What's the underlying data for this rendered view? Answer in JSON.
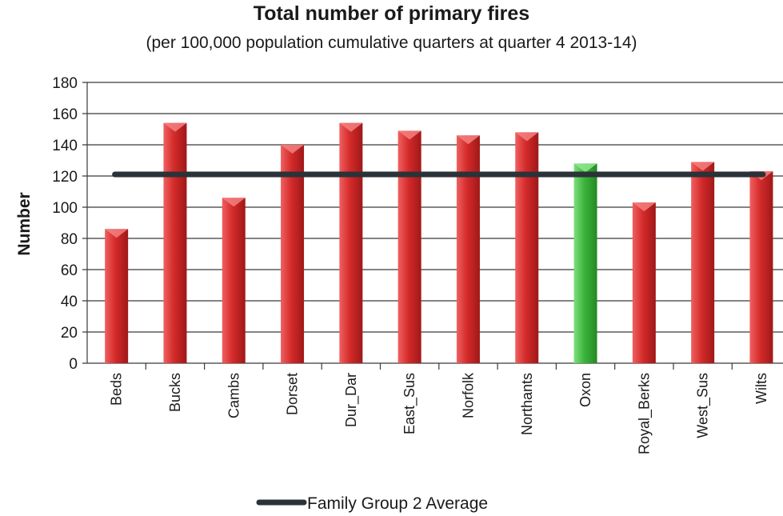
{
  "chart_data": {
    "type": "bar",
    "title": "Total number of primary fires",
    "subtitle": "(per 100,000 population cumulative quarters at quarter 4 2013-14)",
    "xlabel": "",
    "ylabel": "Number",
    "ylim": [
      0,
      180
    ],
    "yticks": [
      0,
      20,
      40,
      60,
      80,
      100,
      120,
      140,
      160,
      180
    ],
    "grid": true,
    "categories": [
      "Beds",
      "Bucks",
      "Cambs",
      "Dorset",
      "Dur_Dar",
      "East_Sus",
      "Norfolk",
      "Northants",
      "Oxon",
      "Royal_Berks",
      "West_Sus",
      "Wilts"
    ],
    "series": [
      {
        "values": [
          86,
          154,
          106,
          140,
          154,
          149,
          146,
          148,
          128,
          103,
          129,
          123
        ],
        "colors": [
          "#d42a2a",
          "#d42a2a",
          "#d42a2a",
          "#d42a2a",
          "#d42a2a",
          "#d42a2a",
          "#d42a2a",
          "#d42a2a",
          "#3bb33b",
          "#d42a2a",
          "#d42a2a",
          "#d42a2a"
        ]
      },
      {
        "name": "Family Group 2 Average",
        "type": "line",
        "value": 121,
        "color": "#2b3238"
      }
    ],
    "legend": {
      "position": "bottom",
      "label": "Family Group 2 Average"
    }
  }
}
